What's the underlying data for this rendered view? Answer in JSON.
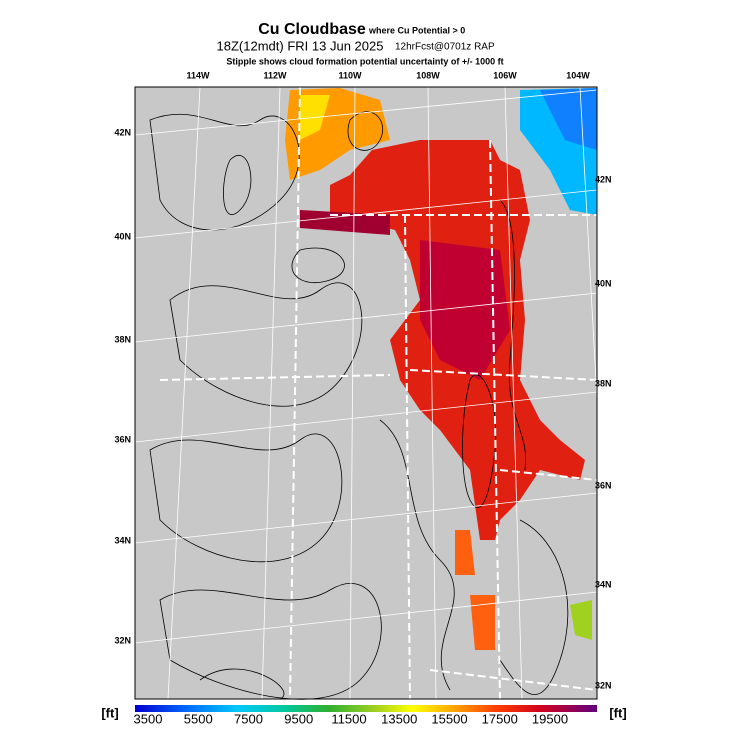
{
  "header": {
    "title": "Cu Cloudbase",
    "condition": "where Cu Potential > 0",
    "valid": "18Z(12mdt) FRI 13 Jun 2025",
    "forecast": "12hrFcst@0701z RAP",
    "note": "Stipple shows cloud formation potential uncertainty of +/-  1000 ft"
  },
  "map": {
    "longitudes": [
      "114W",
      "112W",
      "110W",
      "108W",
      "106W",
      "104W"
    ],
    "latitudes_left": [
      "42N",
      "40N",
      "38N",
      "36N",
      "34N",
      "32N"
    ],
    "latitudes_right": [
      "42N",
      "40N",
      "38N",
      "36N",
      "34N",
      "32N"
    ]
  },
  "colorbar": {
    "unit": "[ft]",
    "ticks": [
      3500,
      5500,
      7500,
      9500,
      11500,
      13500,
      15500,
      17500,
      19500
    ]
  }
}
